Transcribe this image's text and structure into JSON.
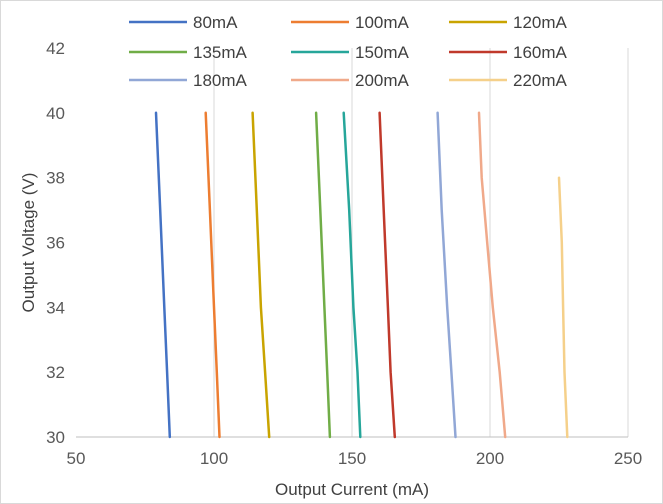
{
  "chart_data": {
    "type": "line",
    "title": "",
    "xlabel": "Output Current (mA)",
    "ylabel": "Output Voltage (V)",
    "xlim": [
      50,
      250
    ],
    "ylim": [
      30,
      42
    ],
    "x_ticks": [
      50,
      100,
      150,
      200,
      250
    ],
    "y_ticks": [
      30,
      32,
      34,
      36,
      38,
      40,
      42
    ],
    "grid": {
      "vertical": true,
      "horizontal": false
    },
    "legend_placement": "top",
    "series": [
      {
        "name": "80mA",
        "color": "#4472C4",
        "points": [
          [
            79,
            40
          ],
          [
            80.5,
            37
          ],
          [
            82,
            34
          ],
          [
            83,
            32
          ],
          [
            84,
            30
          ]
        ]
      },
      {
        "name": "100mA",
        "color": "#ED7D31",
        "points": [
          [
            97,
            40
          ],
          [
            98.5,
            37
          ],
          [
            100,
            34
          ],
          [
            101,
            32
          ],
          [
            102,
            30
          ]
        ]
      },
      {
        "name": "120mA",
        "color": "#C9A400",
        "points": [
          [
            114,
            40
          ],
          [
            115.5,
            37
          ],
          [
            117,
            34
          ],
          [
            118.5,
            32
          ],
          [
            120,
            30
          ]
        ]
      },
      {
        "name": "135mA",
        "color": "#70AD47",
        "points": [
          [
            137,
            40
          ],
          [
            138.5,
            37
          ],
          [
            140,
            34
          ],
          [
            141,
            32
          ],
          [
            142,
            30
          ]
        ]
      },
      {
        "name": "150mA",
        "color": "#26A69A",
        "points": [
          [
            147,
            40
          ],
          [
            149,
            37
          ],
          [
            150.5,
            34
          ],
          [
            152,
            32
          ],
          [
            153,
            30
          ]
        ]
      },
      {
        "name": "160mA",
        "color": "#C0392B",
        "points": [
          [
            160,
            40
          ],
          [
            161.5,
            37
          ],
          [
            163,
            34
          ],
          [
            164,
            32
          ],
          [
            165.5,
            30
          ]
        ]
      },
      {
        "name": "180mA",
        "color": "#91A7D6",
        "points": [
          [
            181,
            40
          ],
          [
            182.5,
            37
          ],
          [
            184.5,
            34
          ],
          [
            186,
            32
          ],
          [
            187.5,
            30
          ]
        ]
      },
      {
        "name": "200mA",
        "color": "#F0A98A",
        "points": [
          [
            196,
            40
          ],
          [
            197,
            38
          ],
          [
            199,
            36
          ],
          [
            201,
            34
          ],
          [
            203.5,
            32
          ],
          [
            205.5,
            30
          ]
        ]
      },
      {
        "name": "220mA",
        "color": "#F5D08A",
        "points": [
          [
            225,
            38
          ],
          [
            226,
            36
          ],
          [
            226.5,
            34
          ],
          [
            227,
            32
          ],
          [
            228,
            30
          ]
        ]
      }
    ]
  }
}
